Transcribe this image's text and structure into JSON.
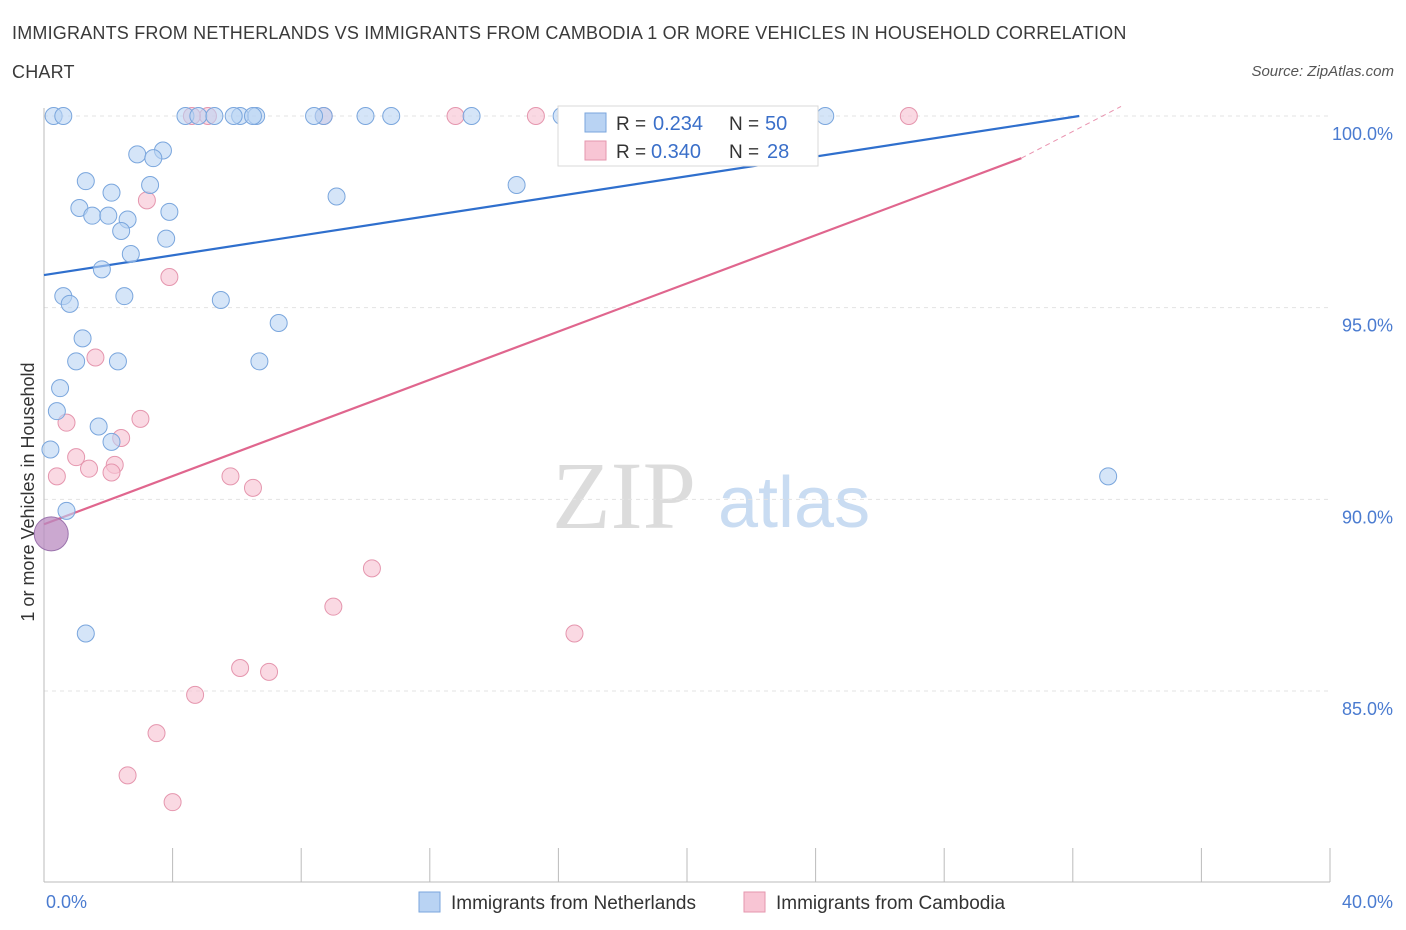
{
  "title_line1": "IMMIGRANTS FROM NETHERLANDS VS IMMIGRANTS FROM CAMBODIA 1 OR MORE VEHICLES IN HOUSEHOLD CORRELATION",
  "title_line2": "CHART",
  "source": "Source: ZipAtlas.com",
  "watermark": {
    "zip": "ZIP",
    "atlas": "atlas"
  },
  "legend": {
    "r_label": "R =",
    "n_label": "N =",
    "netherlands": {
      "r": "0.234",
      "n": "50"
    },
    "cambodia": {
      "r": "0.340",
      "n": "28"
    }
  },
  "chart_data": {
    "type": "scatter",
    "xlabel": "",
    "ylabel": "1 or more Vehicles in Household",
    "xlim": [
      0,
      40
    ],
    "ylim": [
      80,
      100.5
    ],
    "x_tick_labels": [
      "0.0%",
      "40.0%"
    ],
    "y_ticks": [
      {
        "value": 100,
        "label": "100.0%"
      },
      {
        "value": 95,
        "label": "95.0%"
      },
      {
        "value": 90,
        "label": "90.0%"
      },
      {
        "value": 85,
        "label": "85.0%"
      }
    ],
    "grid": true,
    "legend_position": "top-center",
    "colors": {
      "netherlands_fill": "#b9d3f3",
      "netherlands_stroke": "#7aa6dd",
      "netherlands_line": "#2f6fcd",
      "cambodia_fill": "#f8c5d4",
      "cambodia_stroke": "#e596ae",
      "cambodia_line": "#e0668e"
    },
    "series": [
      {
        "name": "Immigrants from Netherlands",
        "trend": {
          "x": [
            0,
            32.2
          ],
          "y": [
            95.85,
            100
          ]
        },
        "points": [
          [
            4.4,
            100
          ],
          [
            4.8,
            100
          ],
          [
            5.3,
            100
          ],
          [
            6.1,
            100
          ],
          [
            6.6,
            100
          ],
          [
            8.7,
            100
          ],
          [
            10.0,
            100
          ],
          [
            10.8,
            100
          ],
          [
            13.3,
            100
          ],
          [
            16.1,
            100
          ],
          [
            24.3,
            100
          ],
          [
            0.3,
            100
          ],
          [
            0.6,
            100
          ],
          [
            3.7,
            99.1
          ],
          [
            2.9,
            99.0
          ],
          [
            3.4,
            98.9
          ],
          [
            1.3,
            98.3
          ],
          [
            3.3,
            98.2
          ],
          [
            2.1,
            98.0
          ],
          [
            14.7,
            98.2
          ],
          [
            9.1,
            97.9
          ],
          [
            1.1,
            97.6
          ],
          [
            1.5,
            97.4
          ],
          [
            2.0,
            97.4
          ],
          [
            3.9,
            97.5
          ],
          [
            2.6,
            97.3
          ],
          [
            2.4,
            97.0
          ],
          [
            3.8,
            96.8
          ],
          [
            2.7,
            96.4
          ],
          [
            1.8,
            96.0
          ],
          [
            0.6,
            95.3
          ],
          [
            0.8,
            95.1
          ],
          [
            2.5,
            95.3
          ],
          [
            5.5,
            95.2
          ],
          [
            7.3,
            94.6
          ],
          [
            1.2,
            94.2
          ],
          [
            1.0,
            93.6
          ],
          [
            2.3,
            93.6
          ],
          [
            6.7,
            93.6
          ],
          [
            0.5,
            92.9
          ],
          [
            0.4,
            92.3
          ],
          [
            1.7,
            91.9
          ],
          [
            2.1,
            91.5
          ],
          [
            0.2,
            91.3
          ],
          [
            33.1,
            90.6
          ],
          [
            0.7,
            89.7
          ],
          [
            1.3,
            86.5
          ],
          [
            6.5,
            100
          ],
          [
            8.4,
            100
          ],
          [
            5.9,
            100
          ]
        ]
      },
      {
        "name": "Immigrants from Cambodia",
        "trend": {
          "x": [
            0,
            30.4
          ],
          "y": [
            89.35,
            98.9
          ]
        },
        "trend_dashed": {
          "x": [
            30.4,
            33.5
          ],
          "y": [
            98.9,
            100.25
          ]
        },
        "points": [
          [
            5.1,
            100
          ],
          [
            8.7,
            100
          ],
          [
            12.8,
            100
          ],
          [
            15.3,
            100
          ],
          [
            26.9,
            100
          ],
          [
            4.6,
            100
          ],
          [
            3.2,
            97.8
          ],
          [
            3.9,
            95.8
          ],
          [
            1.6,
            93.7
          ],
          [
            3.0,
            92.1
          ],
          [
            0.7,
            92.0
          ],
          [
            2.4,
            91.6
          ],
          [
            1.0,
            91.1
          ],
          [
            1.4,
            90.8
          ],
          [
            2.2,
            90.9
          ],
          [
            2.1,
            90.7
          ],
          [
            0.4,
            90.6
          ],
          [
            5.8,
            90.6
          ],
          [
            6.5,
            90.3
          ],
          [
            10.2,
            88.2
          ],
          [
            9.0,
            87.2
          ],
          [
            16.5,
            86.5
          ],
          [
            6.1,
            85.6
          ],
          [
            7.0,
            85.5
          ],
          [
            4.7,
            84.9
          ],
          [
            3.5,
            83.9
          ],
          [
            2.6,
            82.8
          ],
          [
            4.0,
            82.1
          ]
        ],
        "large_point": [
          0.1,
          89.1
        ]
      }
    ]
  },
  "bottom_legend": {
    "netherlands": "Immigrants from Netherlands",
    "cambodia": "Immigrants from Cambodia"
  }
}
